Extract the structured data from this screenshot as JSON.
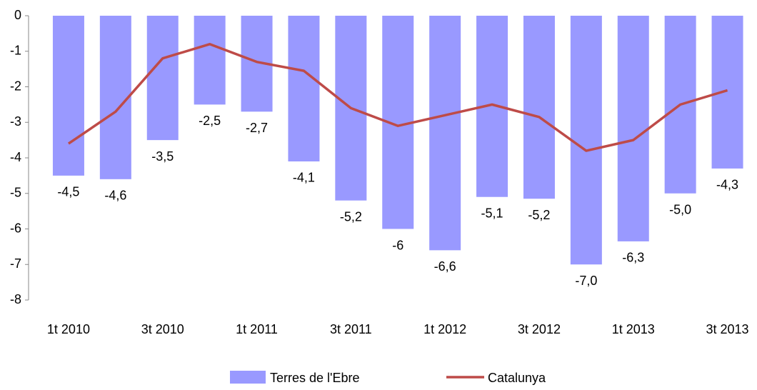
{
  "chart_data": {
    "type": "combo",
    "categories": [
      "1t 2010",
      null,
      "3t 2010",
      null,
      "1t 2011",
      null,
      "3t 2011",
      null,
      "1t 2012",
      null,
      "3t 2012",
      null,
      "1t 2013",
      null,
      "3t 2013"
    ],
    "series": [
      {
        "name": "Terres de l'Ebre",
        "type": "bar",
        "color": "#9999ff",
        "values": [
          -4.5,
          -4.6,
          -3.5,
          -2.5,
          -2.7,
          -4.1,
          -5.2,
          -6,
          -6.6,
          -5.1,
          -5.15,
          -7.0,
          -6.35,
          -5.0,
          -4.3
        ],
        "value_labels": [
          "-4,5",
          "-4,6",
          "-3,5",
          "-2,5",
          "-2,7",
          "-4,1",
          "-5,2",
          "-6",
          "-6,6",
          "-5,1",
          "-5,2",
          "-7,0",
          "-6,3",
          "-5,0",
          "-4,3"
        ]
      },
      {
        "name": "Catalunya",
        "type": "line",
        "color": "#be4b48",
        "values": [
          -3.6,
          -2.7,
          -1.2,
          -0.8,
          -1.3,
          -1.55,
          -2.6,
          -3.1,
          -2.8,
          -2.5,
          -2.85,
          -3.8,
          -3.5,
          -2.5,
          -2.1
        ]
      }
    ],
    "ylim": [
      -8,
      0
    ],
    "yticks": [
      0,
      -1,
      -2,
      -3,
      -4,
      -5,
      -6,
      -7,
      -8
    ],
    "legend": "bottom"
  }
}
